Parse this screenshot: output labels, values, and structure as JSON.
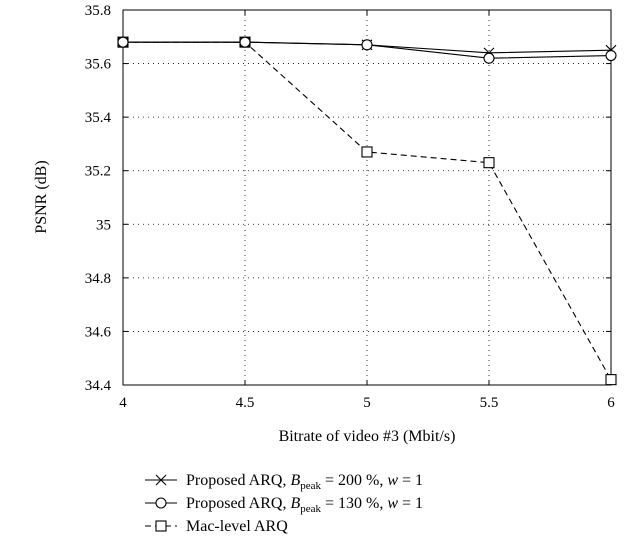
{
  "chart_data": {
    "type": "line",
    "xlabel": "Bitrate of video #3 (Mbit/s)",
    "ylabel": "PSNR (dB)",
    "xlim": [
      4,
      6
    ],
    "ylim": [
      34.4,
      35.8
    ],
    "x_ticks": [
      "4",
      "4.5",
      "5",
      "5.5",
      "6"
    ],
    "y_ticks": [
      "34.4",
      "34.6",
      "34.8",
      "35",
      "35.2",
      "35.4",
      "35.6",
      "35.8"
    ],
    "grid": "dotted",
    "x": [
      4,
      4.5,
      5,
      5.5,
      6
    ],
    "series": [
      {
        "name": "Proposed ARQ, B_peak = 200%, w = 1",
        "marker": "x",
        "line": "solid",
        "values": [
          35.68,
          35.68,
          35.67,
          35.64,
          35.65
        ]
      },
      {
        "name": "Proposed ARQ, B_peak = 130%, w = 1",
        "marker": "circle",
        "line": "solid",
        "values": [
          35.68,
          35.68,
          35.67,
          35.62,
          35.63
        ]
      },
      {
        "name": "Mac-level ARQ",
        "marker": "square",
        "line": "dashed",
        "values": [
          35.68,
          35.68,
          35.27,
          35.23,
          34.42
        ]
      }
    ],
    "legend": {
      "placement": "bottom",
      "entries": [
        {
          "prefix": "Proposed ARQ, ",
          "var": "B",
          "sub": "peak",
          "eq": " = 200 %, ",
          "w": "w",
          "tail": " = 1"
        },
        {
          "prefix": "Proposed ARQ, ",
          "var": "B",
          "sub": "peak",
          "eq": " = 130 %, ",
          "w": "w",
          "tail": " = 1"
        },
        {
          "plain": "Mac-level ARQ"
        }
      ]
    }
  }
}
